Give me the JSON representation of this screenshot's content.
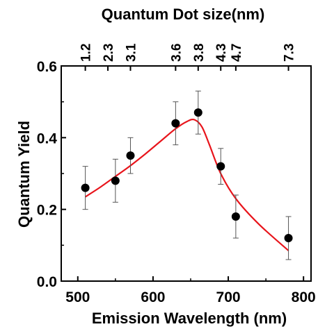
{
  "chart_data": {
    "type": "scatter",
    "title": "Quantum Dot size(nm)",
    "xlabel": "Emission Wavelength (nm)",
    "ylabel": "Quantum Yield",
    "xlim": [
      478,
      810
    ],
    "ylim": [
      0,
      0.6
    ],
    "x_ticks": [
      500,
      600,
      700,
      800
    ],
    "x_tick_labels": [
      "500",
      "600",
      "700",
      "800"
    ],
    "y_ticks": [
      0.0,
      0.2,
      0.4,
      0.6
    ],
    "y_tick_labels": [
      "0.0",
      "0.2",
      "0.4",
      "0.6"
    ],
    "top_axis": {
      "label": "Quantum Dot size(nm)",
      "ticks": [
        {
          "x": 510,
          "label": "1.2"
        },
        {
          "x": 540,
          "label": "2.3"
        },
        {
          "x": 570,
          "label": "3.1"
        },
        {
          "x": 630,
          "label": "3.6"
        },
        {
          "x": 660,
          "label": "3.8"
        },
        {
          "x": 690,
          "label": "4.3"
        },
        {
          "x": 710,
          "label": "4.7"
        },
        {
          "x": 780,
          "label": "7.3"
        }
      ]
    },
    "points": {
      "x": [
        510,
        550,
        570,
        630,
        660,
        690,
        710,
        780
      ],
      "y": [
        0.26,
        0.28,
        0.35,
        0.44,
        0.47,
        0.32,
        0.18,
        0.12
      ],
      "yerr": [
        0.06,
        0.06,
        0.05,
        0.06,
        0.06,
        0.05,
        0.06,
        0.06
      ],
      "color": "#000000"
    },
    "fit_curve": {
      "color": "#e8141b",
      "x": [
        510,
        530,
        550,
        570,
        590,
        610,
        630,
        645,
        655,
        665,
        675,
        690,
        710,
        740,
        780
      ],
      "y": [
        0.235,
        0.262,
        0.292,
        0.322,
        0.355,
        0.39,
        0.425,
        0.445,
        0.45,
        0.43,
        0.38,
        0.3,
        0.23,
        0.16,
        0.085
      ]
    },
    "grid": false,
    "legend": "none"
  }
}
